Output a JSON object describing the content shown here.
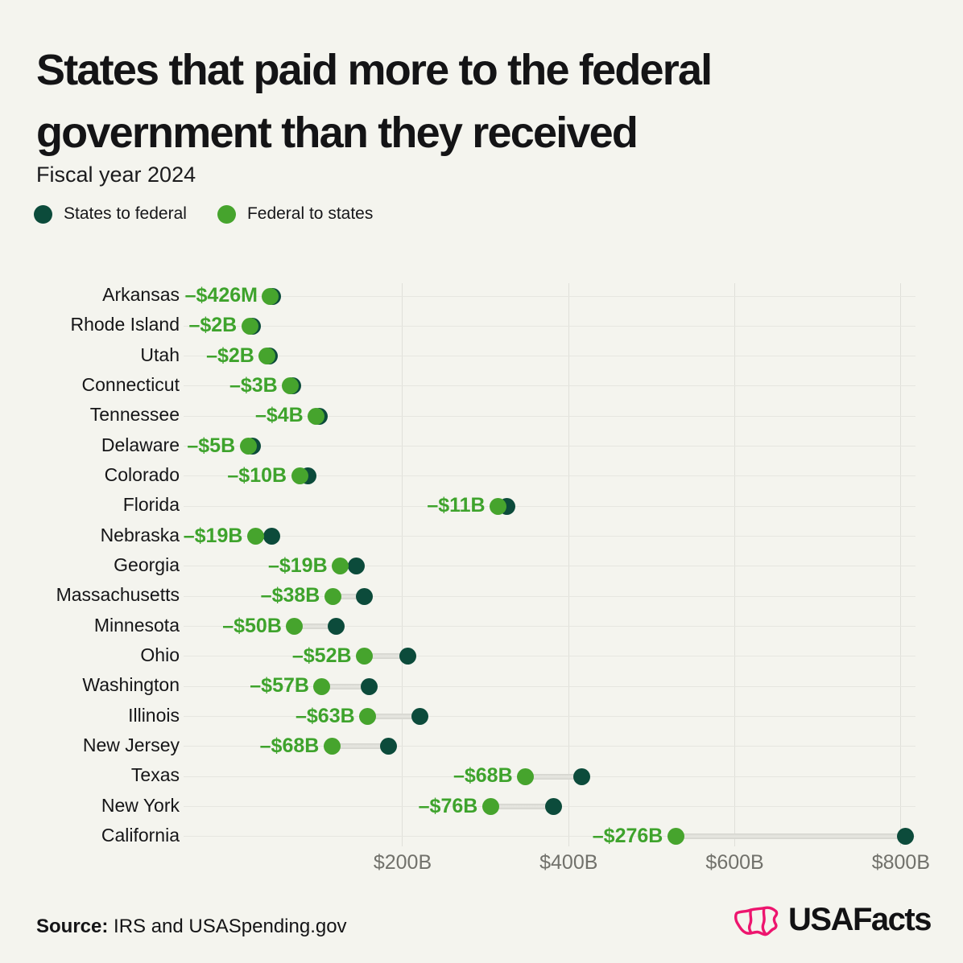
{
  "header": {
    "title": "States that paid more to the federal government than they received",
    "subtitle": "Fiscal year 2024"
  },
  "legend": [
    {
      "label": "States to federal",
      "color": "#0C4B3B"
    },
    {
      "label": "Federal to states",
      "color": "#46A42D"
    }
  ],
  "chart_data": {
    "type": "dumbbell",
    "unit": "USD billions, fiscal year 2024",
    "legend_position": "top-left",
    "grid": true,
    "colors": {
      "states_to_federal": "#0C4B3B",
      "federal_to_states": "#46A42D",
      "diff_label": "#3EA32C",
      "connector": "#DCDCD6"
    },
    "x_axis": {
      "ticks_b": [
        200,
        400,
        600,
        800
      ],
      "tick_labels": [
        "$200B",
        "$400B",
        "$600B",
        "$800B"
      ],
      "range_b": [
        -63,
        817
      ]
    },
    "series_names": [
      "States to federal",
      "Federal to states"
    ],
    "rows": [
      {
        "state": "Arkansas",
        "diff_label": "–$426M",
        "federal_to_states_b": 41,
        "states_to_federal_b": 41.4
      },
      {
        "state": "Rhode Island",
        "diff_label": "–$2B",
        "federal_to_states_b": 16,
        "states_to_federal_b": 18
      },
      {
        "state": "Utah",
        "diff_label": "–$2B",
        "federal_to_states_b": 37,
        "states_to_federal_b": 39
      },
      {
        "state": "Connecticut",
        "diff_label": "–$3B",
        "federal_to_states_b": 65,
        "states_to_federal_b": 68
      },
      {
        "state": "Tennessee",
        "diff_label": "–$4B",
        "federal_to_states_b": 96,
        "states_to_federal_b": 100
      },
      {
        "state": "Delaware",
        "diff_label": "–$5B",
        "federal_to_states_b": 14,
        "states_to_federal_b": 19
      },
      {
        "state": "Colorado",
        "diff_label": "–$10B",
        "federal_to_states_b": 76,
        "states_to_federal_b": 86
      },
      {
        "state": "Florida",
        "diff_label": "–$11B",
        "federal_to_states_b": 315,
        "states_to_federal_b": 326
      },
      {
        "state": "Nebraska",
        "diff_label": "–$19B",
        "federal_to_states_b": 23,
        "states_to_federal_b": 42
      },
      {
        "state": "Georgia",
        "diff_label": "–$19B",
        "federal_to_states_b": 125,
        "states_to_federal_b": 144
      },
      {
        "state": "Massachusetts",
        "diff_label": "–$38B",
        "federal_to_states_b": 116,
        "states_to_federal_b": 154
      },
      {
        "state": "Minnesota",
        "diff_label": "–$50B",
        "federal_to_states_b": 70,
        "states_to_federal_b": 120
      },
      {
        "state": "Ohio",
        "diff_label": "–$52B",
        "federal_to_states_b": 154,
        "states_to_federal_b": 206
      },
      {
        "state": "Washington",
        "diff_label": "–$57B",
        "federal_to_states_b": 103,
        "states_to_federal_b": 160
      },
      {
        "state": "Illinois",
        "diff_label": "–$63B",
        "federal_to_states_b": 158,
        "states_to_federal_b": 221
      },
      {
        "state": "New Jersey",
        "diff_label": "–$68B",
        "federal_to_states_b": 115,
        "states_to_federal_b": 183
      },
      {
        "state": "Texas",
        "diff_label": "–$68B",
        "federal_to_states_b": 348,
        "states_to_federal_b": 416
      },
      {
        "state": "New York",
        "diff_label": "–$76B",
        "federal_to_states_b": 306,
        "states_to_federal_b": 382
      },
      {
        "state": "California",
        "diff_label": "–$276B",
        "federal_to_states_b": 529,
        "states_to_federal_b": 805
      }
    ]
  },
  "footer": {
    "source_label": "Source:",
    "source_text": " IRS and USASpending.gov",
    "brand_text": "USAFacts",
    "brand_pink": "#ED156E"
  }
}
